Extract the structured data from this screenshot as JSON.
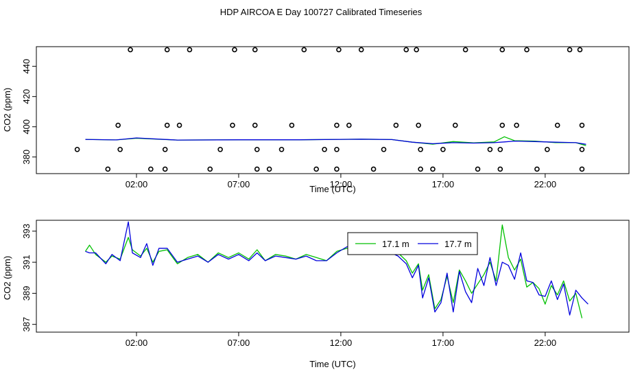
{
  "title": "HDP AIRCOA E  Day 100727  Calibrated Timeseries",
  "colors": {
    "green": "#00c000",
    "blue": "#0000dd",
    "axis": "#000000"
  },
  "chart_data": [
    {
      "type": "line",
      "xlabel": "Time (UTC)",
      "ylabel": "CO2 (ppm)",
      "x_ticks": [
        2,
        7,
        12,
        17,
        22
      ],
      "x_tick_labels": [
        "02:00",
        "07:00",
        "12:00",
        "17:00",
        "22:00"
      ],
      "xlim": [
        -2.9,
        26.1
      ],
      "ylim": [
        369,
        453
      ],
      "y_ticks": [
        380,
        400,
        420,
        440
      ],
      "y_tick_labels": [
        "380",
        "400",
        "420",
        "440"
      ],
      "calibration_points": [
        {
          "x": 1.7,
          "y": 451
        },
        {
          "x": 3.5,
          "y": 451
        },
        {
          "x": 4.6,
          "y": 451
        },
        {
          "x": 6.8,
          "y": 451
        },
        {
          "x": 7.8,
          "y": 451
        },
        {
          "x": 10.2,
          "y": 451
        },
        {
          "x": 11.9,
          "y": 451
        },
        {
          "x": 13.0,
          "y": 451
        },
        {
          "x": 15.2,
          "y": 451
        },
        {
          "x": 15.7,
          "y": 451
        },
        {
          "x": 18.1,
          "y": 451
        },
        {
          "x": 19.9,
          "y": 451
        },
        {
          "x": 21.1,
          "y": 451
        },
        {
          "x": 23.2,
          "y": 451
        },
        {
          "x": 23.7,
          "y": 451
        },
        {
          "x": 1.1,
          "y": 401
        },
        {
          "x": 3.5,
          "y": 401
        },
        {
          "x": 4.1,
          "y": 401
        },
        {
          "x": 6.7,
          "y": 401
        },
        {
          "x": 7.8,
          "y": 401
        },
        {
          "x": 9.6,
          "y": 401
        },
        {
          "x": 11.8,
          "y": 401
        },
        {
          "x": 12.4,
          "y": 401
        },
        {
          "x": 14.7,
          "y": 401
        },
        {
          "x": 15.8,
          "y": 401
        },
        {
          "x": 17.6,
          "y": 401
        },
        {
          "x": 19.9,
          "y": 401
        },
        {
          "x": 20.6,
          "y": 401
        },
        {
          "x": 22.6,
          "y": 401
        },
        {
          "x": 23.8,
          "y": 401
        },
        {
          "x": -0.9,
          "y": 385
        },
        {
          "x": 1.2,
          "y": 385
        },
        {
          "x": 3.4,
          "y": 385
        },
        {
          "x": 6.1,
          "y": 385
        },
        {
          "x": 7.9,
          "y": 385
        },
        {
          "x": 9.1,
          "y": 385
        },
        {
          "x": 11.2,
          "y": 385
        },
        {
          "x": 11.8,
          "y": 385
        },
        {
          "x": 14.1,
          "y": 385
        },
        {
          "x": 15.9,
          "y": 385
        },
        {
          "x": 17.0,
          "y": 385
        },
        {
          "x": 19.3,
          "y": 385
        },
        {
          "x": 19.8,
          "y": 385
        },
        {
          "x": 22.1,
          "y": 385
        },
        {
          "x": 23.8,
          "y": 385
        },
        {
          "x": 0.6,
          "y": 372
        },
        {
          "x": 2.7,
          "y": 372
        },
        {
          "x": 3.4,
          "y": 372
        },
        {
          "x": 5.6,
          "y": 372
        },
        {
          "x": 7.9,
          "y": 372
        },
        {
          "x": 8.5,
          "y": 372
        },
        {
          "x": 10.8,
          "y": 372
        },
        {
          "x": 11.8,
          "y": 372
        },
        {
          "x": 13.6,
          "y": 372
        },
        {
          "x": 15.9,
          "y": 372
        },
        {
          "x": 16.5,
          "y": 372
        },
        {
          "x": 18.7,
          "y": 372
        },
        {
          "x": 19.8,
          "y": 372
        },
        {
          "x": 21.6,
          "y": 372
        },
        {
          "x": 23.8,
          "y": 372
        }
      ],
      "series": [
        {
          "name": "17.1 m",
          "color": "#00c000",
          "x": [
            -0.5,
            1,
            2,
            4,
            7,
            10,
            13,
            14.5,
            15.5,
            16.5,
            17.5,
            18.5,
            19.5,
            20.0,
            20.5,
            21.5,
            22.5,
            23.5,
            24.0
          ],
          "y": [
            391.6,
            391.3,
            392.4,
            391.2,
            391.4,
            391.4,
            391.8,
            391.5,
            389.8,
            388.5,
            390.2,
            389.4,
            390.0,
            393.4,
            390.8,
            390.5,
            389.5,
            389.5,
            387.5
          ]
        },
        {
          "name": "17.7 m",
          "color": "#0000dd",
          "x": [
            -0.5,
            1,
            2,
            4,
            7,
            10,
            13,
            14.5,
            15.5,
            16.5,
            17.5,
            18.5,
            19.5,
            20.0,
            20.5,
            21.5,
            22.5,
            23.5,
            24.0
          ],
          "y": [
            391.6,
            391.3,
            392.6,
            391.2,
            391.4,
            391.4,
            391.8,
            391.5,
            389.8,
            388.8,
            389.5,
            389.2,
            389.5,
            390.0,
            390.5,
            390.2,
            389.8,
            389.5,
            388.4
          ]
        }
      ]
    },
    {
      "type": "line",
      "xlabel": "Time (UTC)",
      "ylabel": "CO2 (ppm)",
      "x_ticks": [
        2,
        7,
        12,
        17,
        22
      ],
      "x_tick_labels": [
        "02:00",
        "07:00",
        "12:00",
        "17:00",
        "22:00"
      ],
      "xlim": [
        -2.9,
        26.1
      ],
      "ylim": [
        386.5,
        393.7
      ],
      "y_ticks": [
        387,
        389,
        391,
        393
      ],
      "y_tick_labels": [
        "387",
        "389",
        "391",
        "393"
      ],
      "legend": {
        "position": "top-center",
        "entries": [
          "17.1 m",
          "17.7 m"
        ]
      },
      "series": [
        {
          "name": "17.1 m",
          "color": "#00c000",
          "x": [
            -0.5,
            -0.3,
            0,
            0.5,
            0.8,
            1.2,
            1.6,
            1.8,
            2.2,
            2.5,
            2.8,
            3.1,
            3.5,
            4.0,
            4.5,
            5.0,
            5.5,
            6.0,
            6.5,
            7.0,
            7.5,
            7.9,
            8.3,
            8.8,
            9.3,
            9.8,
            10.3,
            10.8,
            11.3,
            11.8,
            12.3,
            12.8,
            13.3,
            13.8,
            14.3,
            14.8,
            15.2,
            15.5,
            15.8,
            16.0,
            16.3,
            16.6,
            16.9,
            17.2,
            17.5,
            17.8,
            18.1,
            18.4,
            18.7,
            19.0,
            19.3,
            19.6,
            19.9,
            20.2,
            20.5,
            20.8,
            21.1,
            21.4,
            21.7,
            22.0,
            22.3,
            22.6,
            22.9,
            23.2,
            23.5,
            23.8
          ],
          "y": [
            391.7,
            392.1,
            391.5,
            391.0,
            391.4,
            391.2,
            392.6,
            391.8,
            391.4,
            391.9,
            391.0,
            391.7,
            391.8,
            390.9,
            391.3,
            391.5,
            391.0,
            391.6,
            391.3,
            391.6,
            391.2,
            391.8,
            391.1,
            391.5,
            391.4,
            391.2,
            391.5,
            391.3,
            391.1,
            391.7,
            391.9,
            391.8,
            391.5,
            391.9,
            391.6,
            391.6,
            391.1,
            390.3,
            390.9,
            389.2,
            390.2,
            388.0,
            388.6,
            390.1,
            388.4,
            390.5,
            389.8,
            389.0,
            389.6,
            390.2,
            391.0,
            389.8,
            393.4,
            391.3,
            390.5,
            391.2,
            389.4,
            389.7,
            389.3,
            388.3,
            389.5,
            388.9,
            389.8,
            388.5,
            389.0,
            387.4
          ]
        },
        {
          "name": "17.7 m",
          "color": "#0000dd",
          "x": [
            -0.5,
            -0.3,
            0,
            0.5,
            0.8,
            1.2,
            1.6,
            1.8,
            2.2,
            2.5,
            2.8,
            3.1,
            3.5,
            4.0,
            4.5,
            5.0,
            5.5,
            6.0,
            6.5,
            7.0,
            7.5,
            7.9,
            8.3,
            8.8,
            9.3,
            9.8,
            10.3,
            10.8,
            11.3,
            11.8,
            12.3,
            12.8,
            13.3,
            13.8,
            14.3,
            14.8,
            15.2,
            15.5,
            15.8,
            16.0,
            16.3,
            16.6,
            16.9,
            17.2,
            17.5,
            17.8,
            18.1,
            18.4,
            18.7,
            19.0,
            19.3,
            19.6,
            19.9,
            20.2,
            20.5,
            20.8,
            21.1,
            21.4,
            21.7,
            22.0,
            22.3,
            22.6,
            22.9,
            23.2,
            23.5,
            23.8,
            24.1
          ],
          "y": [
            391.7,
            391.6,
            391.6,
            390.9,
            391.5,
            391.1,
            393.6,
            391.6,
            391.3,
            392.2,
            390.8,
            391.9,
            391.9,
            391.0,
            391.2,
            391.4,
            391.0,
            391.5,
            391.2,
            391.5,
            391.1,
            391.6,
            391.1,
            391.4,
            391.3,
            391.2,
            391.4,
            391.1,
            391.1,
            391.6,
            392.0,
            391.8,
            391.5,
            391.7,
            391.7,
            391.4,
            390.9,
            390.0,
            390.8,
            388.7,
            390.0,
            387.8,
            388.4,
            390.3,
            387.8,
            390.4,
            389.1,
            388.4,
            390.6,
            389.5,
            391.3,
            389.5,
            391.0,
            390.8,
            389.9,
            391.6,
            389.8,
            389.7,
            388.9,
            388.8,
            389.8,
            388.6,
            389.6,
            387.6,
            389.2,
            388.7,
            388.3
          ]
        }
      ]
    }
  ]
}
